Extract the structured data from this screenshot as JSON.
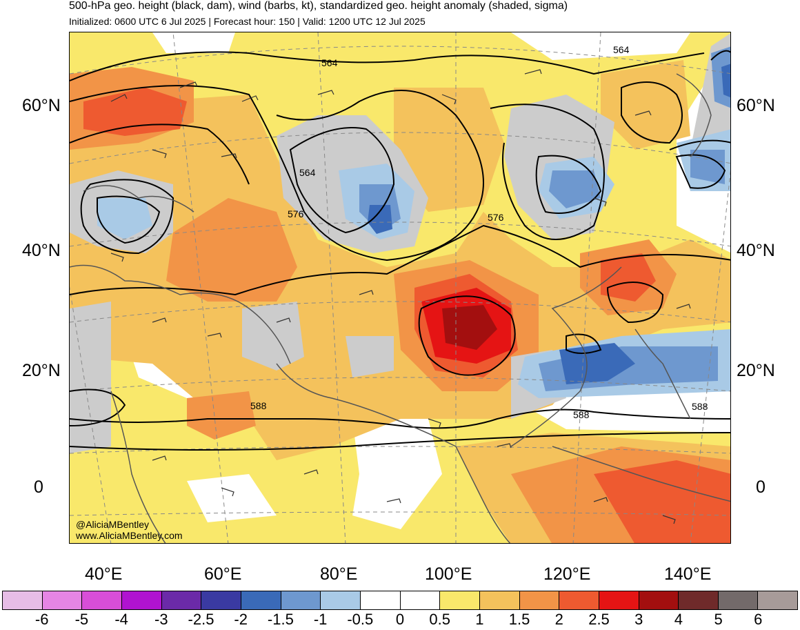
{
  "header": {
    "title": "500-hPa geo. height (black, dam), wind (barbs, kt), standardized geo. height anomaly (shaded, sigma)",
    "subtitle": "Initialized: 0600 UTC 6 Jul 2025 | Forecast hour: 150 | Valid: 1200 UTC 12 Jul 2025"
  },
  "map": {
    "lat_labels_left": [
      "60°N",
      "40°N",
      "20°N",
      "0"
    ],
    "lat_labels_right": [
      "60°N",
      "40°N",
      "20°N",
      "0"
    ],
    "lon_labels": [
      "40°E",
      "60°E",
      "80°E",
      "100°E",
      "120°E",
      "140°E"
    ],
    "contour_labels": [
      "564",
      "564",
      "564",
      "576",
      "576",
      "588",
      "588",
      "588"
    ],
    "credit_handle": "@AliciaMBentley",
    "credit_url": "www.AliciaMBentley.com"
  },
  "colorbar": {
    "labels": [
      "-6",
      "-5",
      "-4",
      "-3",
      "-2.5",
      "-2",
      "-1.5",
      "-1",
      "-0.5",
      "0",
      "0.5",
      "1",
      "1.5",
      "2",
      "2.5",
      "3",
      "4",
      "5",
      "6"
    ],
    "colors": [
      "#e7bde6",
      "#e585e4",
      "#d84ed8",
      "#b013d0",
      "#6b2aa8",
      "#3a3aa2",
      "#3a6ab8",
      "#6e98cf",
      "#a9cae6",
      "#ffffff",
      "#ffffff",
      "#f9e86b",
      "#f4c25c",
      "#f29447",
      "#ee5a30",
      "#e51414",
      "#a30f0f",
      "#6f2a2a",
      "#736a6a",
      "#a79b99"
    ]
  },
  "colors": {
    "anom_pos_05": "#f9e86b",
    "anom_pos_1": "#f4c25c",
    "anom_pos_15": "#f29447",
    "anom_pos_2": "#ee5a30",
    "anom_pos_25": "#e51414",
    "anom_pos_3": "#a30f0f",
    "anom_neg_05": "#a9cae6",
    "anom_neg_1": "#6e98cf",
    "anom_neg_15": "#3a6ab8",
    "neutral_gray": "#cccccc"
  }
}
